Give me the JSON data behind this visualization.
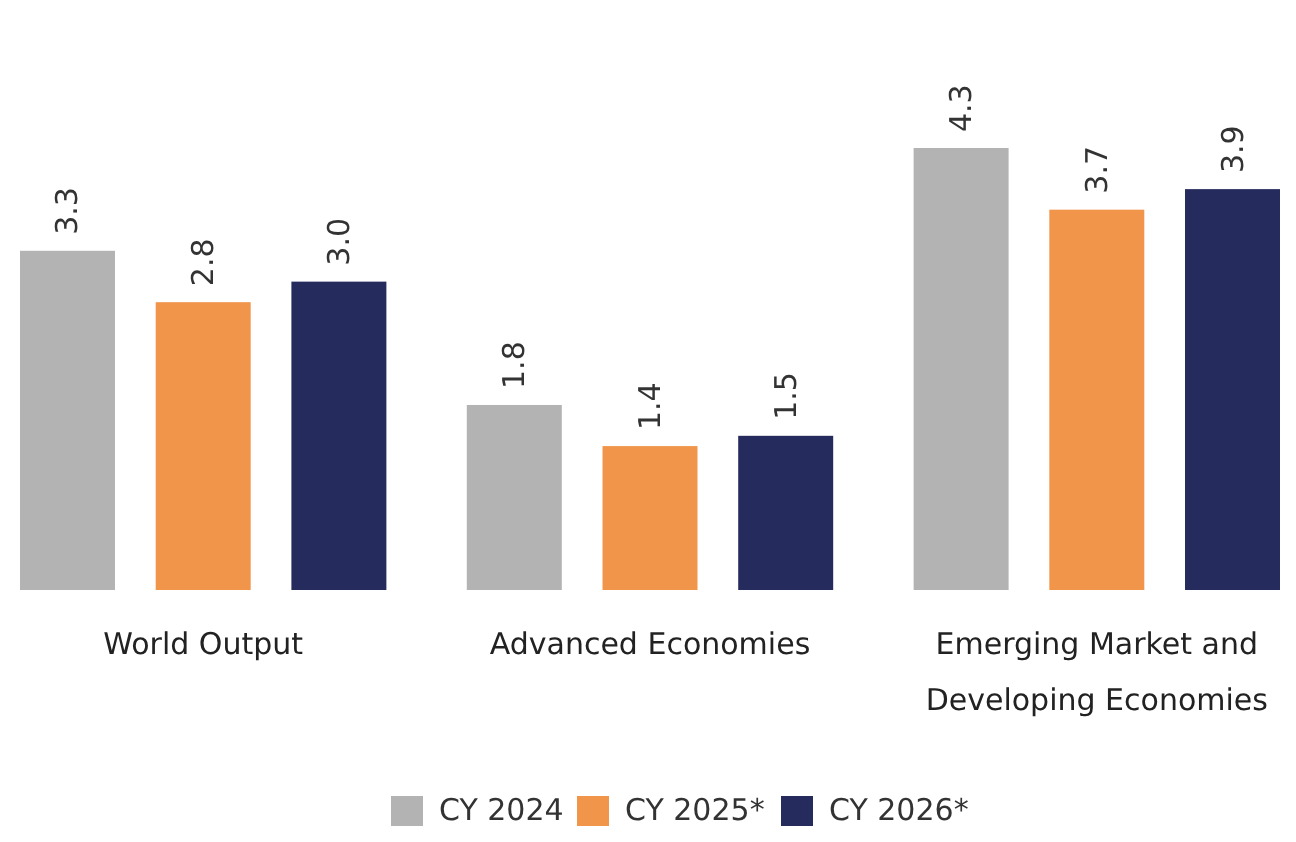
{
  "chart_data": {
    "type": "bar",
    "categories": [
      "World Output",
      "Advanced Economies",
      "Emerging Market and Developing Economies"
    ],
    "series": [
      {
        "name": "CY 2024",
        "color": "#b3b3b3",
        "values": [
          3.3,
          1.8,
          4.3
        ],
        "value_labels": [
          "3.3",
          "1.8",
          "4.3"
        ]
      },
      {
        "name": "CY 2025*",
        "color": "#f0954a",
        "values": [
          2.8,
          1.4,
          3.7
        ],
        "value_labels": [
          "2.8",
          "1.4",
          "3.7"
        ]
      },
      {
        "name": "CY 2026*",
        "color": "#262b5e",
        "values": [
          3.0,
          1.5,
          3.9
        ],
        "value_labels": [
          "3.0",
          "1.5",
          "3.9"
        ]
      }
    ],
    "legend": "bottom"
  }
}
